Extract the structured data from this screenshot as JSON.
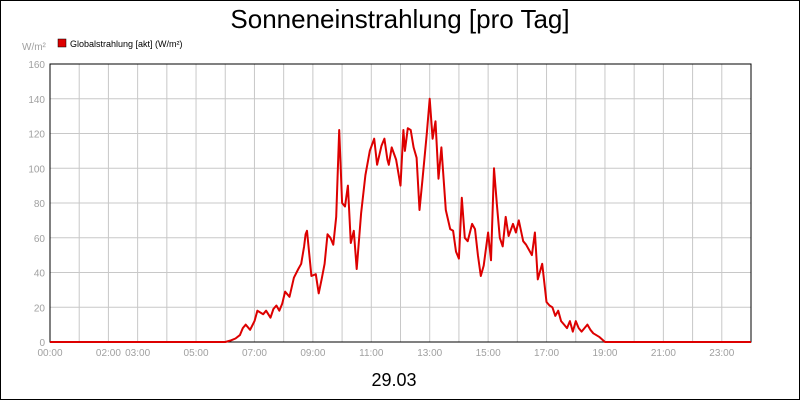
{
  "chart_data": {
    "type": "line",
    "title": "Sonneneinstrahlung [pro Tag]",
    "unit_label": "W/m²",
    "date_label": "29.03",
    "legend": {
      "position": "top-left",
      "color": "#dd0000"
    },
    "grid": true,
    "ylim": [
      0,
      160
    ],
    "yticks": [
      "0",
      "20",
      "40",
      "60",
      "80",
      "100",
      "120",
      "140",
      "160"
    ],
    "xlim": [
      0,
      24
    ],
    "xticks": [
      {
        "x": 0,
        "label": "00:00"
      },
      {
        "x": 2,
        "label": "02:00"
      },
      {
        "x": 3,
        "label": "03:00"
      },
      {
        "x": 5,
        "label": "05:00"
      },
      {
        "x": 7,
        "label": "07:00"
      },
      {
        "x": 9,
        "label": "09:00"
      },
      {
        "x": 11,
        "label": "11:00"
      },
      {
        "x": 13,
        "label": "13:00"
      },
      {
        "x": 15,
        "label": "15:00"
      },
      {
        "x": 17,
        "label": "17:00"
      },
      {
        "x": 19,
        "label": "19:00"
      },
      {
        "x": 21,
        "label": "21:00"
      },
      {
        "x": 23,
        "label": "23:00"
      }
    ],
    "series": [
      {
        "name": "Globalstrahlung [akt] (W/m²)",
        "color": "#dd0000",
        "x": [
          0,
          5.0,
          6.0,
          6.2,
          6.35,
          6.5,
          6.6,
          6.7,
          6.85,
          7.0,
          7.1,
          7.2,
          7.3,
          7.4,
          7.55,
          7.65,
          7.75,
          7.85,
          7.95,
          8.05,
          8.2,
          8.35,
          8.5,
          8.6,
          8.7,
          8.75,
          8.8,
          8.95,
          9.1,
          9.2,
          9.3,
          9.4,
          9.5,
          9.6,
          9.7,
          9.8,
          9.9,
          10.0,
          10.1,
          10.2,
          10.3,
          10.4,
          10.5,
          10.65,
          10.8,
          10.95,
          11.1,
          11.2,
          11.35,
          11.45,
          11.55,
          11.6,
          11.7,
          11.85,
          12.0,
          12.1,
          12.15,
          12.25,
          12.35,
          12.45,
          12.55,
          12.65,
          12.75,
          12.9,
          13.0,
          13.1,
          13.2,
          13.3,
          13.4,
          13.55,
          13.7,
          13.8,
          13.9,
          14.0,
          14.1,
          14.2,
          14.3,
          14.45,
          14.55,
          14.65,
          14.75,
          14.85,
          15.0,
          15.1,
          15.2,
          15.3,
          15.4,
          15.5,
          15.6,
          15.7,
          15.85,
          15.95,
          16.05,
          16.2,
          16.3,
          16.4,
          16.5,
          16.6,
          16.7,
          16.85,
          17.0,
          17.1,
          17.2,
          17.3,
          17.4,
          17.5,
          17.6,
          17.7,
          17.8,
          17.9,
          18.0,
          18.1,
          18.2,
          18.3,
          18.4,
          18.5,
          18.6,
          18.8,
          19.0,
          24.0
        ],
        "values": [
          0,
          0,
          0,
          1,
          2,
          4,
          8,
          10,
          7,
          12,
          18,
          17,
          16,
          18,
          14,
          19,
          21,
          18,
          22,
          29,
          26,
          37,
          42,
          45,
          55,
          62,
          64,
          38,
          39,
          28,
          36,
          45,
          62,
          60,
          56,
          72,
          122,
          80,
          78,
          90,
          57,
          64,
          42,
          74,
          96,
          110,
          117,
          102,
          113,
          117,
          105,
          102,
          112,
          105,
          90,
          122,
          110,
          123,
          122,
          112,
          106,
          76,
          93,
          120,
          140,
          117,
          127,
          94,
          112,
          76,
          65,
          64,
          52,
          48,
          83,
          60,
          58,
          68,
          65,
          50,
          38,
          44,
          63,
          47,
          100,
          79,
          60,
          55,
          72,
          61,
          68,
          63,
          70,
          58,
          56,
          53,
          50,
          63,
          36,
          45,
          23,
          21,
          20,
          15,
          18,
          12,
          10,
          8,
          12,
          6,
          12,
          8,
          6,
          8,
          10,
          7,
          5,
          3,
          0,
          0
        ]
      }
    ]
  }
}
